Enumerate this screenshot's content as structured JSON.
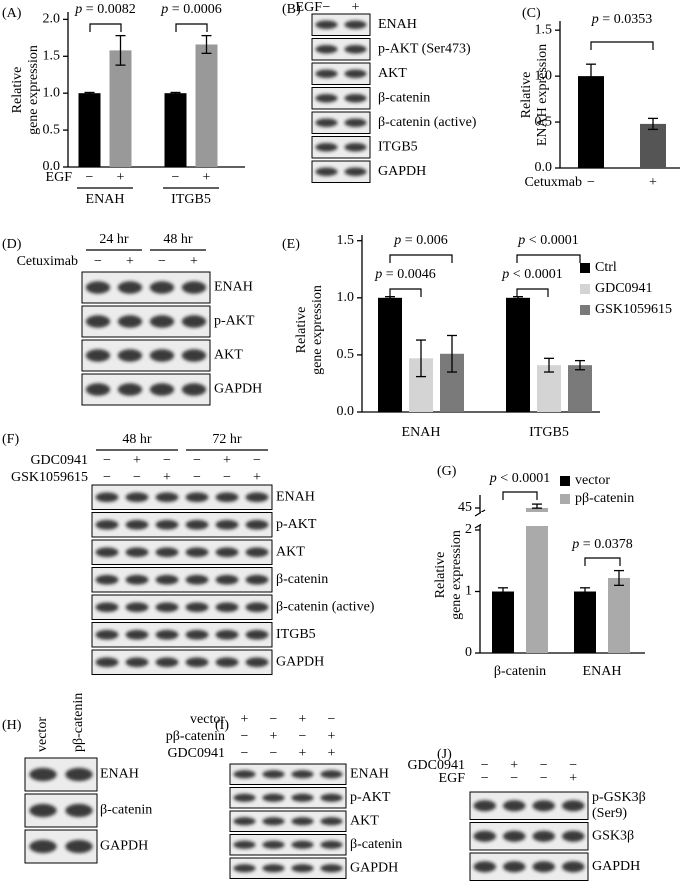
{
  "chart_data": [
    {
      "panel": "(A)",
      "type": "bar",
      "ylabel": [
        "Relative",
        "gene expression"
      ],
      "categories": [
        "ENAH",
        "ITGB5"
      ],
      "group_label": "EGF",
      "series": [
        {
          "name": "−",
          "color": "#000000",
          "values": [
            1.0,
            1.0
          ],
          "errors": [
            0.01,
            0.01
          ]
        },
        {
          "name": "+",
          "color": "#999999",
          "values": [
            1.58,
            1.66
          ],
          "errors": [
            0.2,
            0.12
          ]
        }
      ],
      "annotations": [
        "p = 0.0082",
        "p = 0.0006"
      ],
      "ylim": [
        0,
        2.1
      ],
      "yticks": [
        {
          "value": 0,
          "label": "0.0"
        },
        0.5,
        {
          "value": 1,
          "label": "1.0"
        },
        1.5,
        {
          "value": 2,
          "label": "2.0"
        }
      ]
    },
    {
      "panel": "(C)",
      "type": "bar",
      "ylabel": [
        "Relative",
        "ENAH expression"
      ],
      "xlabel": "Cetuxmab",
      "categories": [
        "−",
        "+"
      ],
      "values": [
        1.0,
        0.48
      ],
      "errors": [
        0.13,
        0.06
      ],
      "colors": [
        "#000000",
        "#555555"
      ],
      "annotations": [
        "p = 0.0353"
      ],
      "ylim": [
        0,
        1.6
      ],
      "yticks": [
        {
          "value": 0,
          "label": "0.0"
        },
        0.5,
        {
          "value": 1,
          "label": "1.0"
        },
        1.5
      ]
    },
    {
      "panel": "(E)",
      "type": "bar",
      "ylabel": [
        "Relative",
        "gene expression"
      ],
      "categories": [
        "ENAH",
        "ITGB5"
      ],
      "series": [
        {
          "name": "Ctrl",
          "color": "#000000",
          "values": [
            1.0,
            1.0
          ],
          "errors": [
            0.01,
            0.01
          ]
        },
        {
          "name": "GDC0941",
          "color": "#d4d4d4",
          "values": [
            0.47,
            0.41
          ],
          "errors": [
            0.16,
            0.06
          ]
        },
        {
          "name": "GSK1059615",
          "color": "#7a7a7a",
          "values": [
            0.51,
            0.41
          ],
          "errors": [
            0.16,
            0.04
          ]
        }
      ],
      "legend": "right",
      "annotations": [
        "p = 0.006",
        "p = 0.0046",
        "p < 0.0001",
        "p < 0.0001"
      ],
      "ylim": [
        0,
        1.55
      ],
      "yticks": [
        {
          "value": 0,
          "label": "0.0"
        },
        0.5,
        {
          "value": 1,
          "label": "1.0"
        },
        1.5
      ]
    },
    {
      "panel": "(G)",
      "type": "bar",
      "ylabel": [
        "Relative",
        "gene expression"
      ],
      "categories": [
        "β-catenin",
        "ENAH"
      ],
      "series": [
        {
          "name": "vector",
          "color": "#000000",
          "values": [
            1.0,
            1.0
          ],
          "errors": [
            0.06,
            0.06
          ]
        },
        {
          "name": "pβ-catenin",
          "color": "#aaaaaa",
          "values": [
            45,
            1.22
          ],
          "errors": [
            0.3,
            0.12
          ]
        }
      ],
      "legend": "upper right",
      "annotations": [
        "p < 0.0001",
        "p = 0.0378"
      ],
      "ylim": [
        0,
        46
      ],
      "ybreak": [
        2,
        45
      ],
      "yticks": [
        0,
        1,
        2,
        45
      ]
    }
  ],
  "blots": [
    {
      "panel": "(B)",
      "conditions": [
        {
          "name": "EGF",
          "levels": [
            "−",
            "+"
          ]
        }
      ],
      "proteins": [
        "ENAH",
        "p-AKT (Ser473)",
        "AKT",
        "β-catenin",
        "β-catenin (active)",
        "ITGB5",
        "GAPDH"
      ]
    },
    {
      "panel": "(D)",
      "groups": [
        "24 hr",
        "48 hr"
      ],
      "conditions": [
        {
          "name": "Cetuximab",
          "levels": [
            "−",
            "+",
            "−",
            "+"
          ]
        }
      ],
      "proteins": [
        "ENAH",
        "p-AKT",
        "AKT",
        "GAPDH"
      ]
    },
    {
      "panel": "(F)",
      "groups": [
        "48 hr",
        "72 hr"
      ],
      "conditions": [
        {
          "name": "GDC0941",
          "levels": [
            "−",
            "+",
            "−",
            "−",
            "+",
            "−"
          ]
        },
        {
          "name": "GSK1059615",
          "levels": [
            "−",
            "−",
            "+",
            "−",
            "−",
            "+"
          ]
        }
      ],
      "proteins": [
        "ENAH",
        "p-AKT",
        "AKT",
        "β-catenin",
        "β-catenin (active)",
        "ITGB5",
        "GAPDH"
      ]
    },
    {
      "panel": "(H)",
      "lanes": [
        "vector",
        "pβ-catenin"
      ],
      "proteins": [
        "ENAH",
        "β-catenin",
        "GAPDH"
      ]
    },
    {
      "panel": "(I)",
      "conditions": [
        {
          "name": "vector",
          "levels": [
            "+",
            "−",
            "+",
            "−"
          ]
        },
        {
          "name": "pβ-catenin",
          "levels": [
            "−",
            "+",
            "−",
            "+"
          ]
        },
        {
          "name": "GDC0941",
          "levels": [
            "−",
            "−",
            "+",
            "+"
          ]
        }
      ],
      "proteins": [
        "ENAH",
        "p-AKT",
        "AKT",
        "β-catenin",
        "GAPDH"
      ]
    },
    {
      "panel": "(J)",
      "conditions": [
        {
          "name": "GDC0941",
          "levels": [
            "−",
            "+",
            "−",
            "−"
          ]
        },
        {
          "name": "EGF",
          "levels": [
            "−",
            "−",
            "−",
            "+"
          ]
        }
      ],
      "proteins": [
        [
          "p-GSK3β",
          "(Ser9)"
        ],
        "GSK3β",
        "GAPDH"
      ]
    }
  ]
}
